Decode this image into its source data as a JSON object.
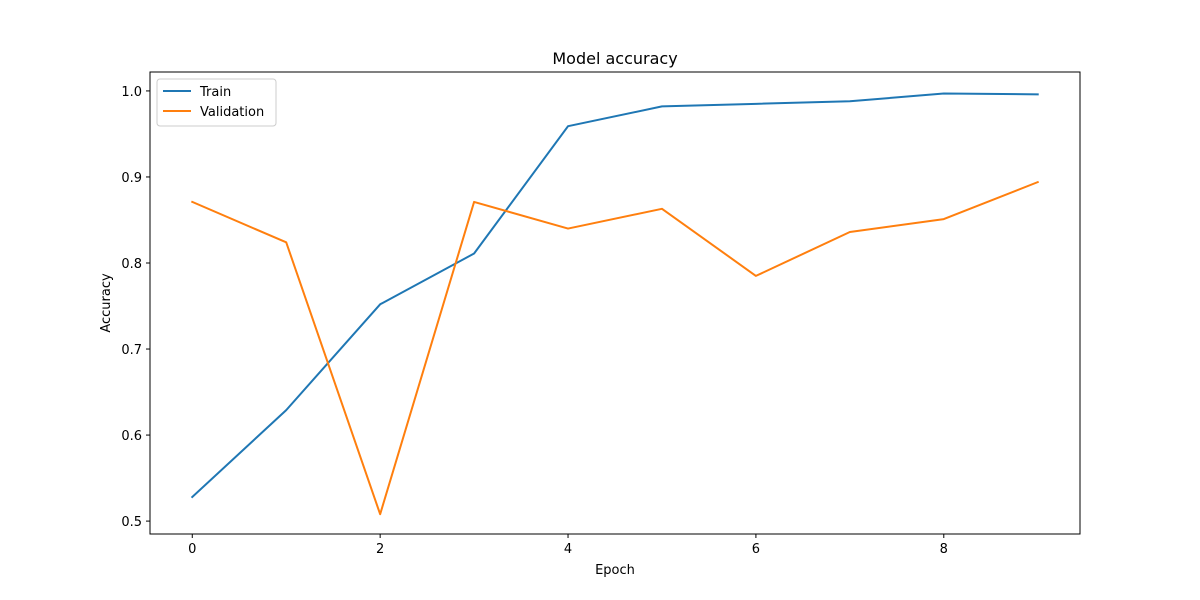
{
  "chart_data": {
    "type": "line",
    "title": "Model accuracy",
    "xlabel": "Epoch",
    "ylabel": "Accuracy",
    "x": [
      0,
      1,
      2,
      3,
      4,
      5,
      6,
      7,
      8,
      9
    ],
    "xticks": [
      0,
      2,
      4,
      6,
      8
    ],
    "yticks": [
      0.5,
      0.6,
      0.7,
      0.8,
      0.9,
      1.0
    ],
    "ytick_labels": [
      "0.5",
      "0.6",
      "0.7",
      "0.8",
      "0.9",
      "1.0"
    ],
    "xlim": [
      -0.45,
      9.45
    ],
    "ylim": [
      0.485,
      1.022
    ],
    "grid": false,
    "legend_position": "top-left",
    "series": [
      {
        "name": "Train",
        "color": "#1f77b4",
        "values": [
          0.528,
          0.629,
          0.752,
          0.811,
          0.959,
          0.982,
          0.985,
          0.988,
          0.997,
          0.996
        ]
      },
      {
        "name": "Validation",
        "color": "#ff7f0e",
        "values": [
          0.871,
          0.824,
          0.508,
          0.871,
          0.84,
          0.863,
          0.785,
          0.836,
          0.851,
          0.894
        ]
      }
    ]
  }
}
